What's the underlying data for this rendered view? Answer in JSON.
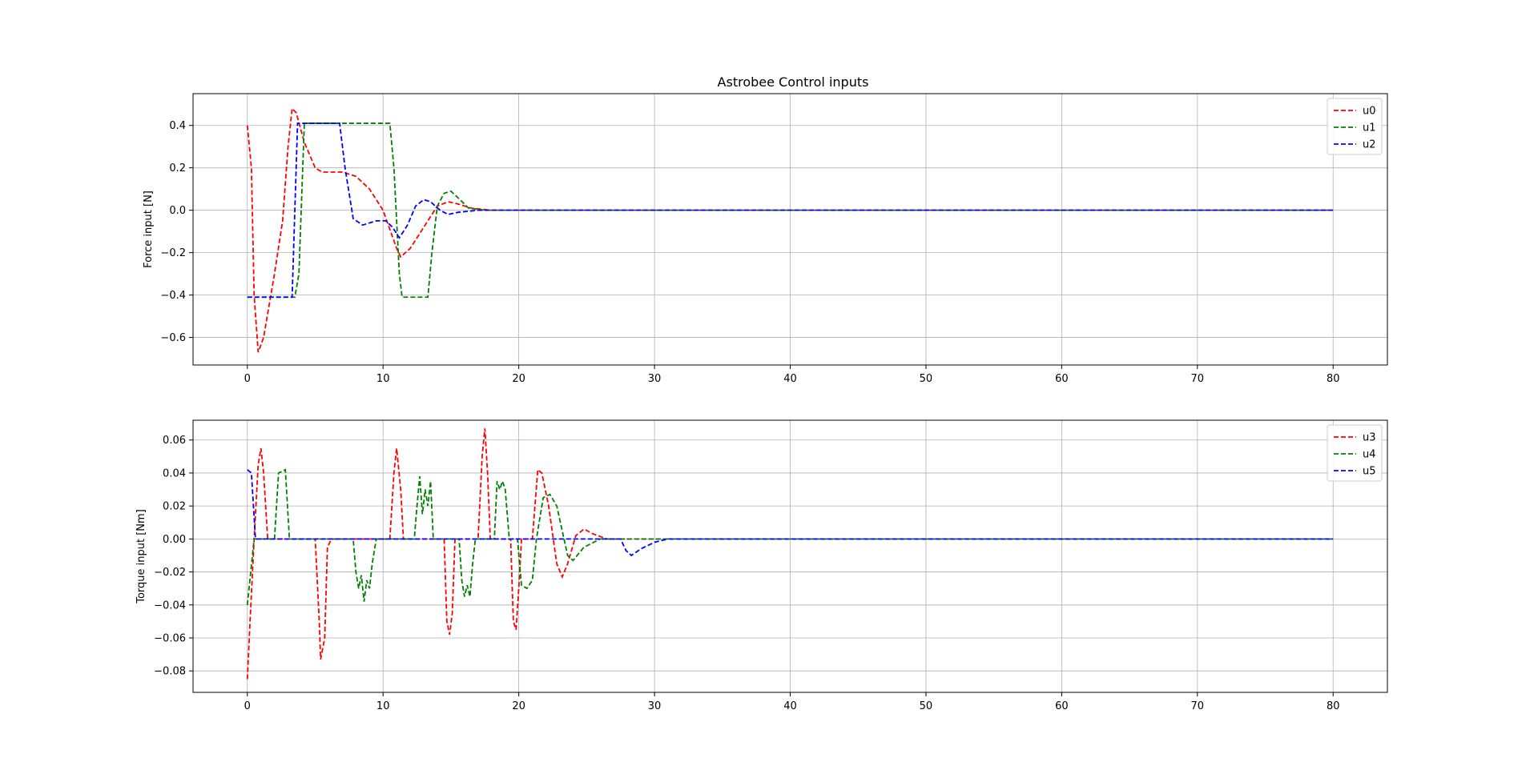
{
  "figure": {
    "title": "Astrobee Control inputs"
  },
  "chart_data": [
    {
      "type": "line",
      "title": "Astrobee Control inputs",
      "xlabel": "",
      "ylabel": "Force input [N]",
      "xlim": [
        -4,
        84
      ],
      "ylim": [
        -0.73,
        0.55
      ],
      "x_ticks": [
        0,
        10,
        20,
        30,
        40,
        50,
        60,
        70,
        80
      ],
      "y_ticks": [
        -0.6,
        -0.4,
        -0.2,
        0.0,
        0.2,
        0.4
      ],
      "x_tick_labels": [
        "0",
        "10",
        "20",
        "30",
        "40",
        "50",
        "60",
        "70",
        "80"
      ],
      "y_tick_labels": [
        "−0.6",
        "−0.4",
        "−0.2",
        "0.0",
        "0.2",
        "0.4"
      ],
      "grid": true,
      "legend_position": "top-right",
      "series": [
        {
          "name": "u0",
          "color": "#ff0000",
          "style": "dashed",
          "points": [
            [
              0,
              0.4
            ],
            [
              0.3,
              0.2
            ],
            [
              0.5,
              -0.4
            ],
            [
              0.8,
              -0.67
            ],
            [
              1.2,
              -0.6
            ],
            [
              2,
              -0.3
            ],
            [
              2.6,
              -0.05
            ],
            [
              3,
              0.3
            ],
            [
              3.3,
              0.48
            ],
            [
              3.6,
              0.46
            ],
            [
              4.2,
              0.32
            ],
            [
              5,
              0.2
            ],
            [
              5.5,
              0.18
            ],
            [
              7,
              0.18
            ],
            [
              8,
              0.16
            ],
            [
              9,
              0.1
            ],
            [
              10,
              0.0
            ],
            [
              11,
              -0.18
            ],
            [
              11.3,
              -0.22
            ],
            [
              12,
              -0.18
            ],
            [
              13,
              -0.08
            ],
            [
              14,
              0.02
            ],
            [
              14.8,
              0.04
            ],
            [
              15.5,
              0.03
            ],
            [
              16.5,
              0.01
            ],
            [
              18,
              0.0
            ],
            [
              80,
              0.0
            ]
          ]
        },
        {
          "name": "u1",
          "color": "#008000",
          "style": "dashed",
          "points": [
            [
              0,
              -0.41
            ],
            [
              3.5,
              -0.41
            ],
            [
              3.8,
              -0.3
            ],
            [
              4.2,
              0.41
            ],
            [
              10.5,
              0.41
            ],
            [
              10.8,
              0.2
            ],
            [
              11.2,
              -0.3
            ],
            [
              11.4,
              -0.41
            ],
            [
              13.3,
              -0.41
            ],
            [
              13.6,
              -0.2
            ],
            [
              14,
              0.02
            ],
            [
              14.5,
              0.08
            ],
            [
              15,
              0.09
            ],
            [
              15.5,
              0.06
            ],
            [
              16.3,
              0.01
            ],
            [
              17.5,
              0.0
            ],
            [
              80,
              0.0
            ]
          ]
        },
        {
          "name": "u2",
          "color": "#0000ff",
          "style": "dashed",
          "points": [
            [
              0,
              -0.41
            ],
            [
              3.3,
              -0.41
            ],
            [
              3.5,
              0.0
            ],
            [
              3.7,
              0.41
            ],
            [
              6.8,
              0.41
            ],
            [
              7.2,
              0.2
            ],
            [
              7.8,
              -0.04
            ],
            [
              8.5,
              -0.07
            ],
            [
              9.5,
              -0.05
            ],
            [
              10.2,
              -0.05
            ],
            [
              10.7,
              -0.08
            ],
            [
              11.2,
              -0.13
            ],
            [
              11.8,
              -0.07
            ],
            [
              12.4,
              0.02
            ],
            [
              13,
              0.05
            ],
            [
              13.5,
              0.04
            ],
            [
              14.2,
              0.0
            ],
            [
              14.8,
              -0.02
            ],
            [
              15.5,
              -0.01
            ],
            [
              17,
              0.0
            ],
            [
              80,
              0.0
            ]
          ]
        }
      ]
    },
    {
      "type": "line",
      "title": "",
      "xlabel": "",
      "ylabel": "Torque input [Nm]",
      "xlim": [
        -4,
        84
      ],
      "ylim": [
        -0.093,
        0.072
      ],
      "x_ticks": [
        0,
        10,
        20,
        30,
        40,
        50,
        60,
        70,
        80
      ],
      "y_ticks": [
        -0.08,
        -0.06,
        -0.04,
        -0.02,
        0.0,
        0.02,
        0.04,
        0.06
      ],
      "x_tick_labels": [
        "0",
        "10",
        "20",
        "30",
        "40",
        "50",
        "60",
        "70",
        "80"
      ],
      "y_tick_labels": [
        "−0.08",
        "−0.06",
        "−0.04",
        "−0.02",
        "0.00",
        "0.02",
        "0.04",
        "0.06"
      ],
      "grid": true,
      "legend_position": "top-right",
      "series": [
        {
          "name": "u3",
          "color": "#ff0000",
          "style": "dashed",
          "points": [
            [
              0,
              -0.085
            ],
            [
              0.2,
              -0.05
            ],
            [
              0.5,
              0.0
            ],
            [
              0.8,
              0.045
            ],
            [
              1.0,
              0.055
            ],
            [
              1.2,
              0.04
            ],
            [
              1.5,
              0.0
            ],
            [
              5.0,
              0.0
            ],
            [
              5.3,
              -0.05
            ],
            [
              5.4,
              -0.073
            ],
            [
              5.7,
              -0.06
            ],
            [
              5.9,
              -0.005
            ],
            [
              6.2,
              0.0
            ],
            [
              10.5,
              0.0
            ],
            [
              10.8,
              0.04
            ],
            [
              11.0,
              0.055
            ],
            [
              11.3,
              0.03
            ],
            [
              11.5,
              0.0
            ],
            [
              14.5,
              0.0
            ],
            [
              14.7,
              -0.05
            ],
            [
              14.9,
              -0.058
            ],
            [
              15.1,
              -0.045
            ],
            [
              15.3,
              0.0
            ],
            [
              17.0,
              0.0
            ],
            [
              17.3,
              0.05
            ],
            [
              17.5,
              0.067
            ],
            [
              17.7,
              0.04
            ],
            [
              17.9,
              0.0
            ],
            [
              19.4,
              0.0
            ],
            [
              19.6,
              -0.05
            ],
            [
              19.8,
              -0.055
            ],
            [
              20.0,
              -0.03
            ],
            [
              20.2,
              0.0
            ],
            [
              21.0,
              0.0
            ],
            [
              21.4,
              0.042
            ],
            [
              21.7,
              0.04
            ],
            [
              22.2,
              0.02
            ],
            [
              22.8,
              -0.015
            ],
            [
              23.2,
              -0.023
            ],
            [
              23.6,
              -0.015
            ],
            [
              24.2,
              0.002
            ],
            [
              24.8,
              0.006
            ],
            [
              25.5,
              0.003
            ],
            [
              26.5,
              0.0
            ],
            [
              80,
              0.0
            ]
          ]
        },
        {
          "name": "u4",
          "color": "#008000",
          "style": "dashed",
          "points": [
            [
              0,
              -0.04
            ],
            [
              0.5,
              0.0
            ],
            [
              2,
              0.0
            ],
            [
              2.3,
              0.04
            ],
            [
              2.8,
              0.042
            ],
            [
              3.1,
              0.0
            ],
            [
              7.8,
              0.0
            ],
            [
              8.0,
              -0.02
            ],
            [
              8.2,
              -0.03
            ],
            [
              8.4,
              -0.022
            ],
            [
              8.6,
              -0.038
            ],
            [
              8.8,
              -0.025
            ],
            [
              9.0,
              -0.03
            ],
            [
              9.2,
              -0.015
            ],
            [
              9.5,
              0.0
            ],
            [
              12.3,
              0.0
            ],
            [
              12.5,
              0.02
            ],
            [
              12.7,
              0.038
            ],
            [
              12.9,
              0.015
            ],
            [
              13.1,
              0.03
            ],
            [
              13.3,
              0.02
            ],
            [
              13.5,
              0.035
            ],
            [
              13.7,
              0.0
            ],
            [
              15.6,
              0.0
            ],
            [
              15.8,
              -0.025
            ],
            [
              16.0,
              -0.035
            ],
            [
              16.2,
              -0.028
            ],
            [
              16.4,
              -0.035
            ],
            [
              16.6,
              -0.015
            ],
            [
              16.8,
              0.0
            ],
            [
              18.2,
              0.0
            ],
            [
              18.4,
              0.035
            ],
            [
              18.6,
              0.03
            ],
            [
              18.8,
              0.035
            ],
            [
              19.0,
              0.03
            ],
            [
              19.3,
              0.0
            ],
            [
              19.9,
              0.0
            ],
            [
              20.2,
              -0.028
            ],
            [
              20.6,
              -0.03
            ],
            [
              21.0,
              -0.025
            ],
            [
              21.3,
              0.0
            ],
            [
              21.8,
              0.025
            ],
            [
              22.3,
              0.027
            ],
            [
              22.8,
              0.02
            ],
            [
              23.2,
              0.005
            ],
            [
              23.6,
              -0.01
            ],
            [
              24.0,
              -0.013
            ],
            [
              24.8,
              -0.005
            ],
            [
              26.0,
              0.0
            ],
            [
              80,
              0.0
            ]
          ]
        },
        {
          "name": "u5",
          "color": "#0000ff",
          "style": "dashed",
          "points": [
            [
              0,
              0.042
            ],
            [
              0.3,
              0.04
            ],
            [
              0.6,
              0.0
            ],
            [
              27.5,
              0.0
            ],
            [
              27.9,
              -0.007
            ],
            [
              28.3,
              -0.01
            ],
            [
              29,
              -0.006
            ],
            [
              30,
              -0.002
            ],
            [
              31,
              0.0
            ],
            [
              80,
              0.0
            ]
          ]
        }
      ]
    }
  ]
}
